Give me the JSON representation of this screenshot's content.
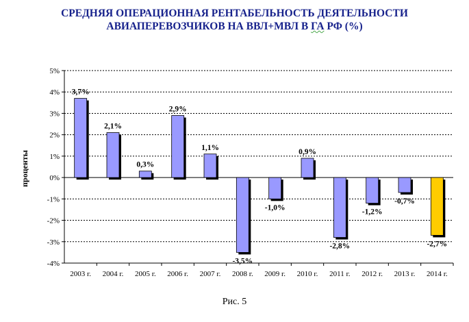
{
  "title_line1": "СРЕДНЯЯ ОПЕРАЦИОННАЯ РЕНТАБЕЛЬНОСТЬ ДЕЯТЕЛЬНОСТИ",
  "title_line2_pre": "АВИАПЕРЕВОЗЧИКОВ НА ВВЛ+МВЛ В ",
  "title_line2_mark": "ГА",
  "title_line2_post": " РФ (%)",
  "caption": "Рис. 5",
  "colors": {
    "bar": "#9999ff",
    "highlight": "#ffcc00",
    "shadow": "#000000",
    "title": "#17228c"
  },
  "chart_data": {
    "type": "bar",
    "ylabel": "проценты",
    "ylim": [
      -4,
      5
    ],
    "ytick_labels": [
      "5%",
      "4%",
      "3%",
      "2%",
      "1%",
      "0%",
      "-1%",
      "-2%",
      "-3%",
      "-4%"
    ],
    "grid": "horizontal dotted",
    "categories": [
      "2003 г.",
      "2004 г.",
      "2005 г.",
      "2006 г.",
      "2007 г.",
      "2008 г.",
      "2009 г.",
      "2010 г.",
      "2011 г.",
      "2012 г.",
      "2013 г.",
      "2014 г."
    ],
    "values": [
      3.7,
      2.1,
      0.3,
      2.9,
      1.1,
      -3.5,
      -1.0,
      0.9,
      -2.8,
      -1.2,
      -0.7,
      -2.7
    ],
    "labels": [
      "3,7%",
      "2,1%",
      "0,3%",
      "2,9%",
      "1,1%",
      "-3,5%",
      "-1,0%",
      "0,9%",
      "-2,8%",
      "-1,2%",
      "-0,7%",
      "-2,7%"
    ],
    "highlighted_category": "2014 г."
  }
}
